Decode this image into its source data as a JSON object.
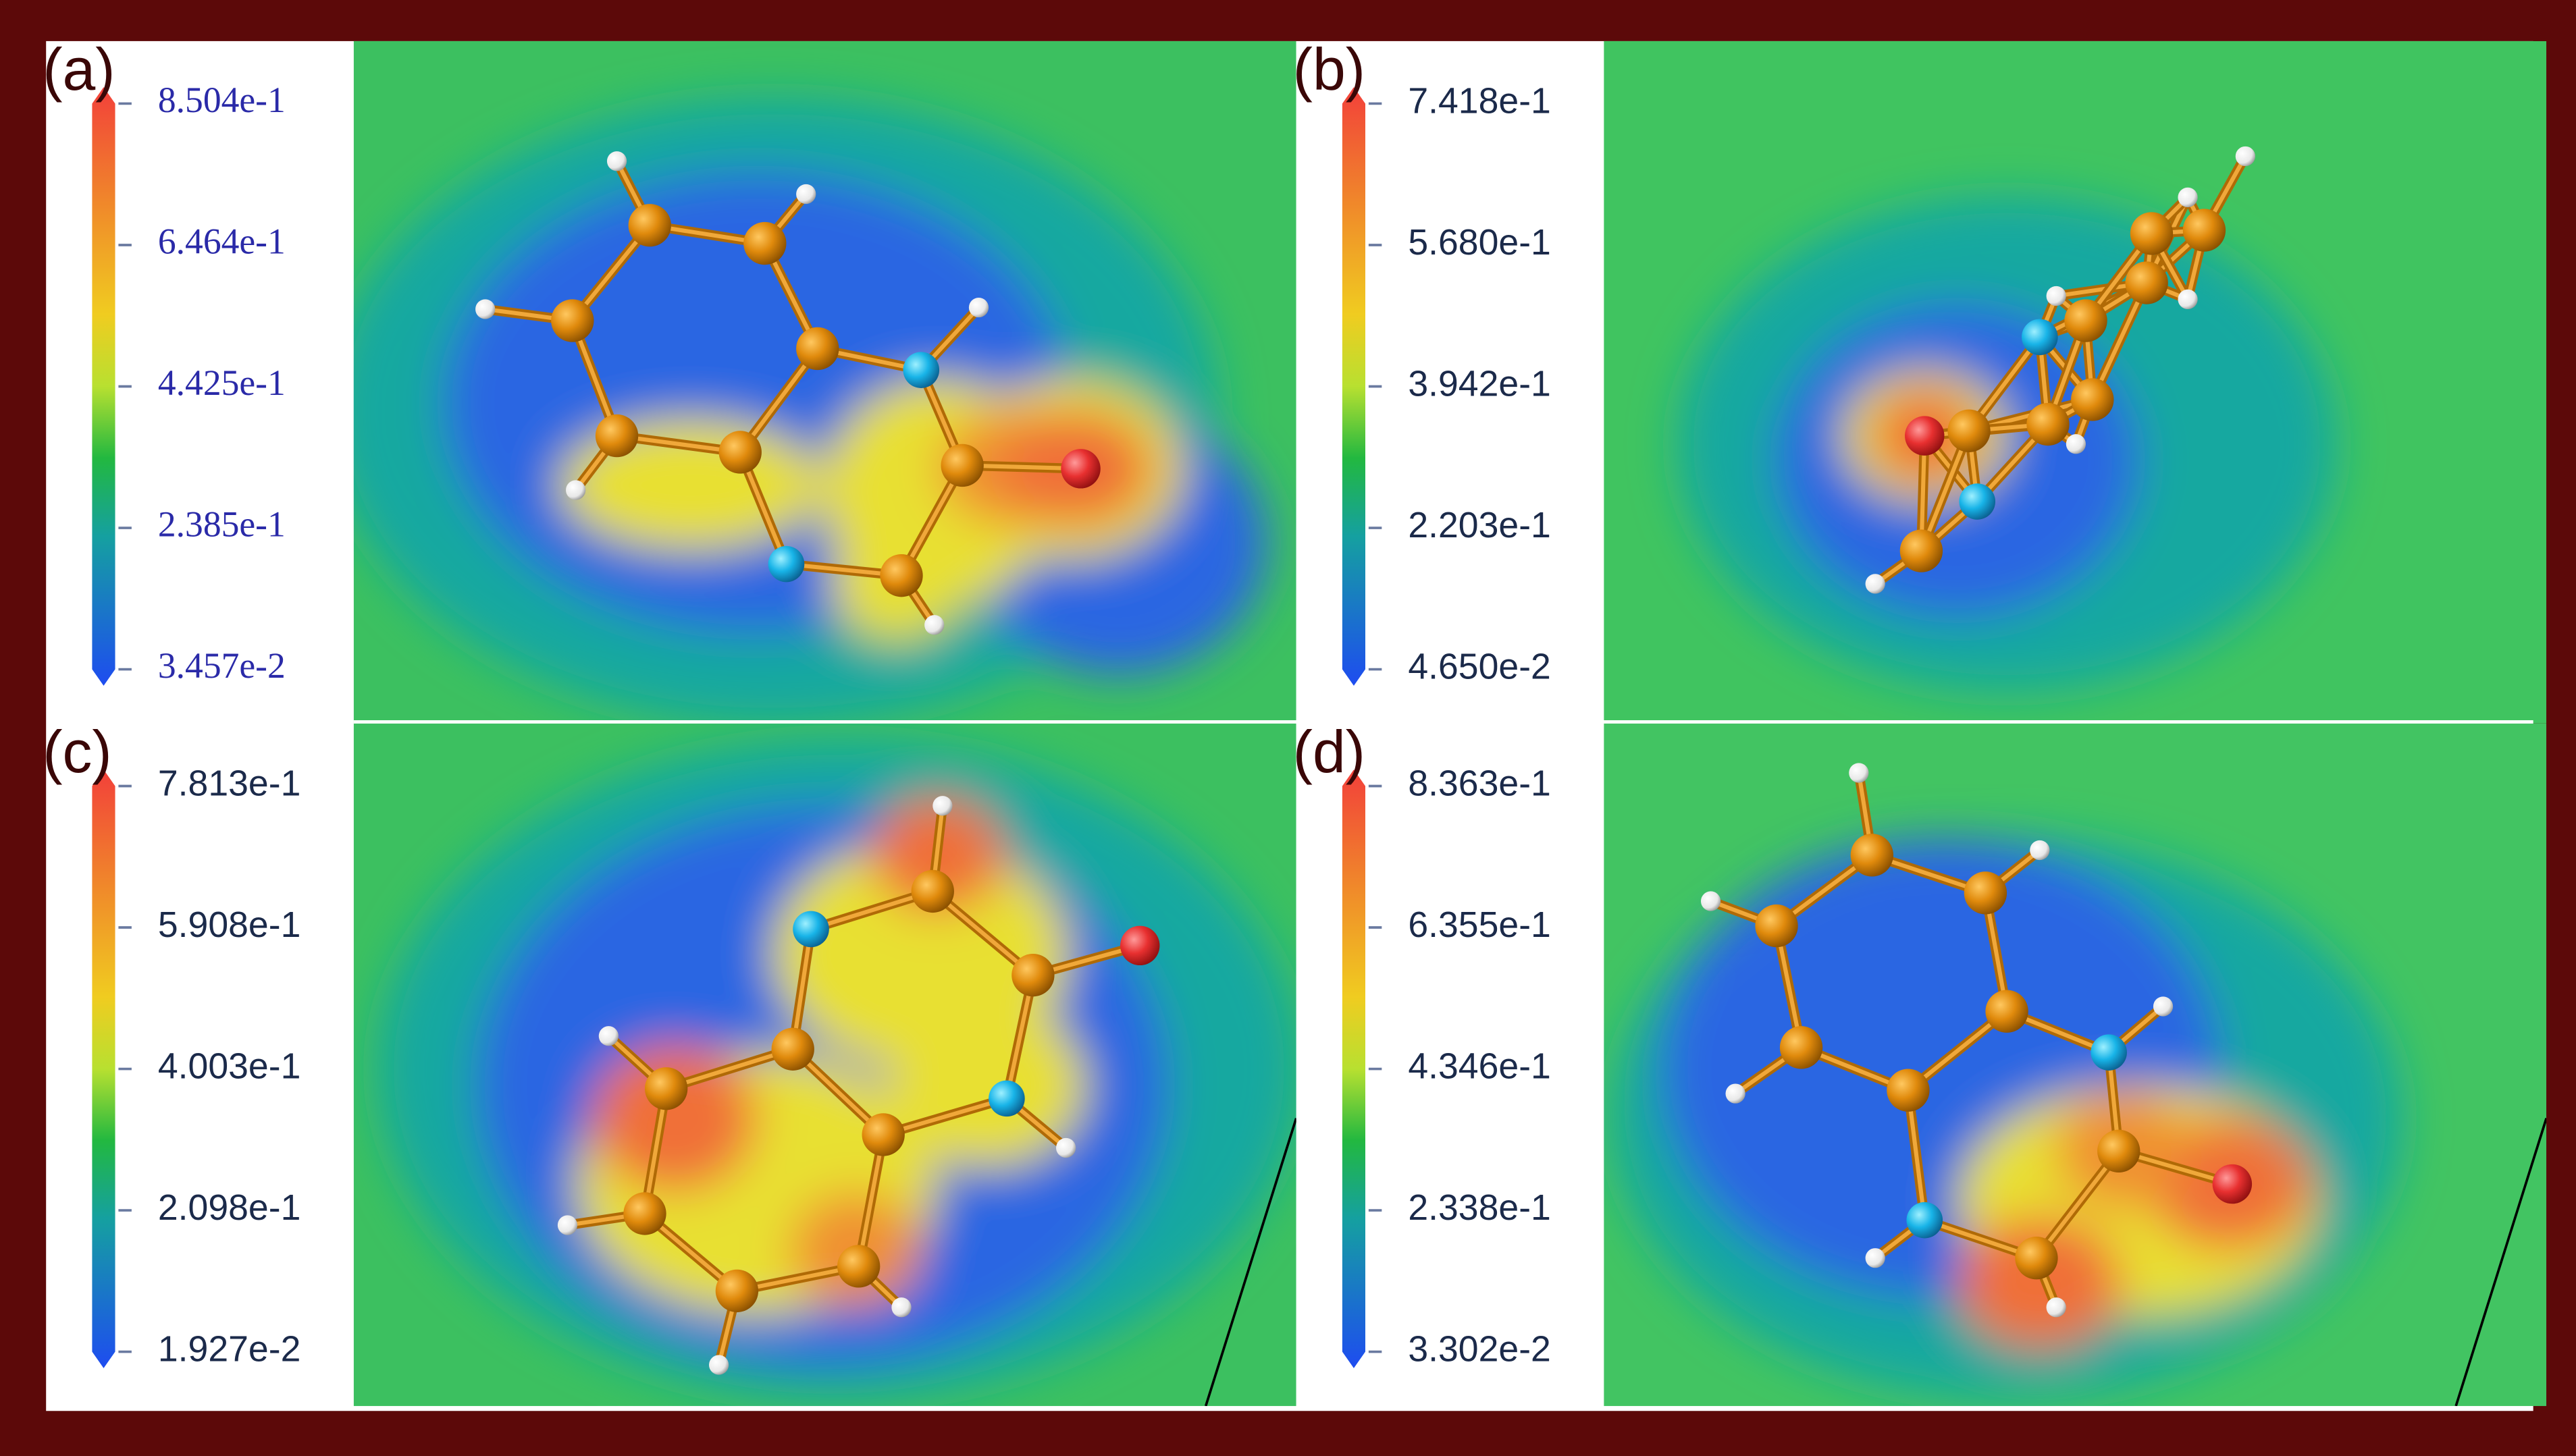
{
  "panels": [
    {
      "label": "(a)",
      "colorbar": {
        "ticks": [
          "8.504e-1",
          "6.464e-1",
          "4.425e-1",
          "2.385e-1",
          "3.457e-2"
        ]
      }
    },
    {
      "label": "(b)",
      "colorbar": {
        "ticks": [
          "7.418e-1",
          "5.680e-1",
          "3.942e-1",
          "2.203e-1",
          "4.650e-2"
        ]
      }
    },
    {
      "label": "(c)",
      "colorbar": {
        "ticks": [
          "7.813e-1",
          "5.908e-1",
          "4.003e-1",
          "2.098e-1",
          "1.927e-2"
        ]
      }
    },
    {
      "label": "(d)",
      "colorbar": {
        "ticks": [
          "8.363e-1",
          "6.355e-1",
          "4.346e-1",
          "2.338e-1",
          "3.302e-2"
        ]
      }
    }
  ]
}
